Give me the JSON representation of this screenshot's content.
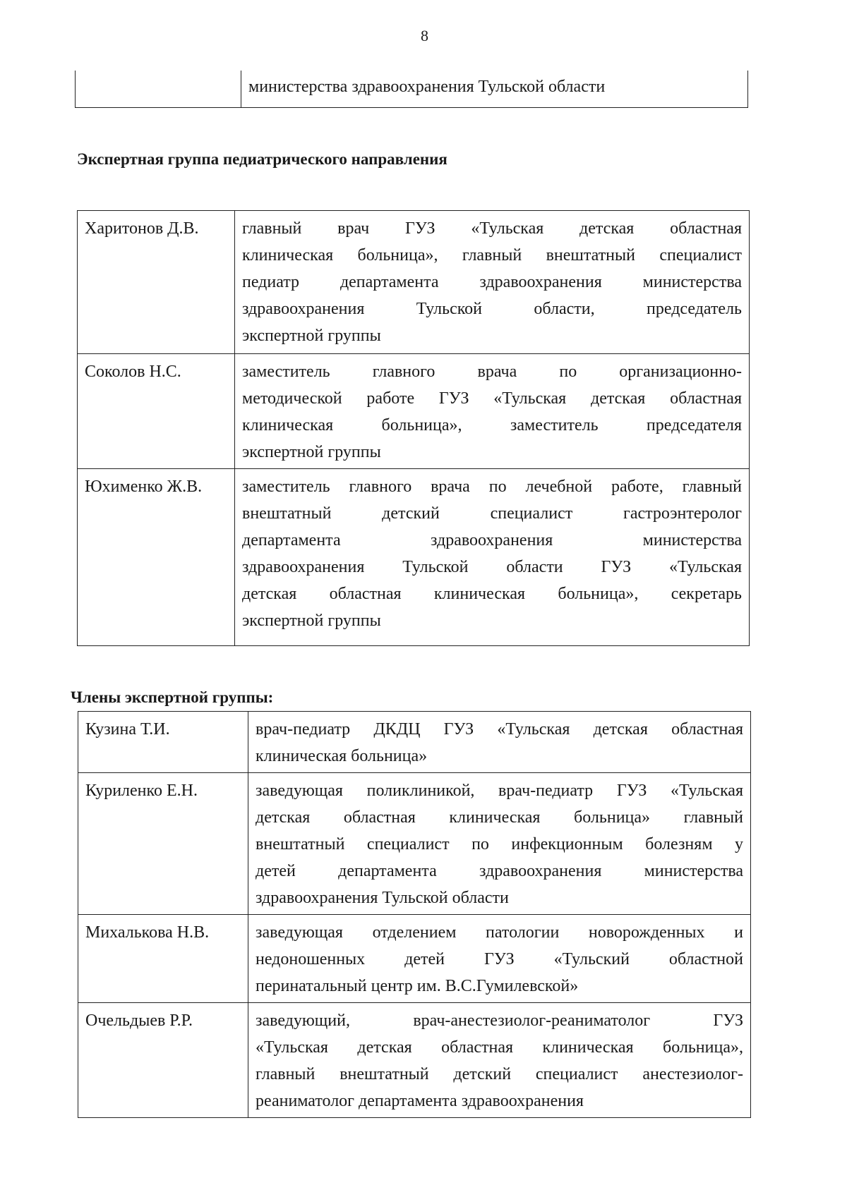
{
  "page_number": "8",
  "continuation": {
    "lines": [
      "министерства здравоохранения Тульской области"
    ]
  },
  "section1": {
    "title": "Экспертная группа педиатрического направления",
    "rows": [
      {
        "name": "Харитонов Д.В.",
        "lines": [
          "главный врач ГУЗ «Тульская детская областная",
          "клиническая больница», главный внештатный специалист",
          "педиатр департамента здравоохранения министерства",
          "здравоохранения Тульской области, председатель",
          "экспертной группы"
        ]
      },
      {
        "name": "Соколов Н.С.",
        "lines": [
          "заместитель главного врача по организационно-",
          "методической работе ГУЗ «Тульская детская областная",
          "клиническая больница», заместитель председателя",
          "экспертной группы"
        ]
      },
      {
        "name": "Юхименко Ж.В.",
        "lines": [
          "заместитель главного врача по лечебной работе, главный",
          "внештатный детский специалист гастроэнтеролог",
          "департамента здравоохранения министерства",
          "здравоохранения Тульской области ГУЗ «Тульская",
          "детская областная клиническая больница», секретарь",
          "экспертной группы"
        ]
      }
    ]
  },
  "section2": {
    "title": "Члены экспертной группы:",
    "rows": [
      {
        "name": "Кузина Т.И.",
        "lines": [
          "врач-педиатр ДКДЦ ГУЗ «Тульская детская областная",
          "клиническая больница»"
        ]
      },
      {
        "name": "Куриленко Е.Н.",
        "lines": [
          "заведующая поликлиникой, врач-педиатр ГУЗ «Тульская",
          "детская областная клиническая больница» главный",
          "внештатный специалист по инфекционным болезням у",
          "детей департамента здравоохранения министерства",
          "здравоохранения Тульской области"
        ]
      },
      {
        "name": "Михалькова Н.В.",
        "lines": [
          "заведующая отделением патологии новорожденных и",
          "недоношенных детей ГУЗ «Тульский областной",
          "перинатальный центр им. В.С.Гумилевской»"
        ]
      },
      {
        "name": "Очельдыев Р.Р.",
        "lines": [
          "заведующий, врач-анестезиолог-реаниматолог ГУЗ",
          "«Тульская детская областная клиническая больница»,",
          "главный внештатный детский специалист анестезиолог-",
          "реаниматолог департамента здравоохранения"
        ]
      }
    ]
  }
}
